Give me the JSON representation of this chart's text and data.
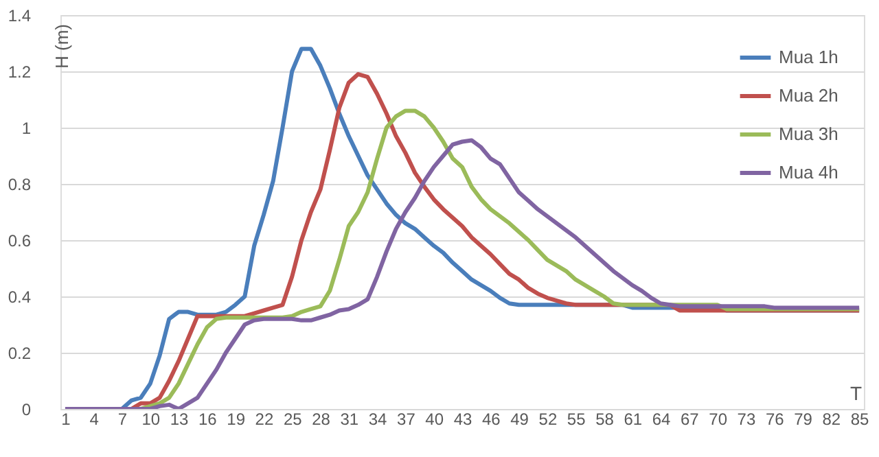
{
  "chart_data": {
    "type": "line",
    "xlabel": "T",
    "ylabel": "H (m)",
    "x": [
      1,
      2,
      3,
      4,
      5,
      6,
      7,
      8,
      9,
      10,
      11,
      12,
      13,
      14,
      15,
      16,
      17,
      18,
      19,
      20,
      21,
      22,
      23,
      24,
      25,
      26,
      27,
      28,
      29,
      30,
      31,
      32,
      33,
      34,
      35,
      36,
      37,
      38,
      39,
      40,
      41,
      42,
      43,
      44,
      45,
      46,
      47,
      48,
      49,
      50,
      51,
      52,
      53,
      54,
      55,
      56,
      57,
      58,
      59,
      60,
      61,
      62,
      63,
      64,
      65,
      66,
      67,
      68,
      69,
      70,
      71,
      72,
      73,
      74,
      75,
      76,
      77,
      78,
      79,
      80,
      81,
      82,
      83,
      84,
      85
    ],
    "xlim": [
      0.5,
      85.5
    ],
    "xticks": [
      1,
      4,
      7,
      10,
      13,
      16,
      19,
      22,
      25,
      28,
      31,
      34,
      37,
      40,
      43,
      46,
      49,
      52,
      55,
      58,
      61,
      64,
      67,
      70,
      73,
      76,
      79,
      82,
      85
    ],
    "ylim": [
      0,
      1.4
    ],
    "yticks": [
      0,
      0.2,
      0.4,
      0.6,
      0.8,
      1,
      1.2,
      1.4
    ],
    "grid": "y",
    "legend": "top right",
    "marker": "none",
    "line_style": "solid",
    "series": [
      {
        "name": "Mua 1h",
        "color": "#4a7ebb",
        "values": [
          null,
          null,
          null,
          null,
          null,
          null,
          0,
          0.03,
          0.04,
          0.09,
          0.19,
          0.32,
          0.345,
          0.345,
          0.335,
          0.335,
          0.335,
          0.345,
          0.37,
          0.4,
          0.58,
          0.69,
          0.81,
          1.0,
          1.2,
          1.28,
          1.28,
          1.22,
          1.14,
          1.05,
          0.97,
          0.9,
          0.83,
          0.78,
          0.73,
          0.69,
          0.66,
          0.64,
          0.61,
          0.58,
          0.555,
          0.52,
          0.49,
          0.46,
          0.44,
          0.42,
          0.395,
          0.375,
          0.37,
          0.37,
          0.37,
          0.37,
          0.37,
          0.37,
          0.37,
          0.37,
          0.37,
          0.37,
          0.37,
          0.37,
          0.36,
          0.36,
          0.36,
          0.36,
          0.36,
          0.36,
          0.36,
          0.36,
          0.36,
          0.36,
          0.35,
          0.35,
          0.35,
          0.35,
          0.35,
          0.35,
          0.35,
          0.35,
          0.35,
          0.35,
          0.35,
          0.35,
          0.35,
          0.35,
          0.35
        ]
      },
      {
        "name": "Mua 2h",
        "color": "#c0504d",
        "values": [
          null,
          null,
          null,
          null,
          null,
          null,
          null,
          0,
          0.02,
          0.02,
          0.04,
          0.1,
          0.17,
          0.25,
          0.33,
          0.33,
          0.33,
          0.33,
          0.33,
          0.33,
          0.34,
          0.35,
          0.36,
          0.37,
          0.47,
          0.6,
          0.7,
          0.78,
          0.92,
          1.07,
          1.16,
          1.19,
          1.18,
          1.12,
          1.05,
          0.97,
          0.91,
          0.84,
          0.79,
          0.745,
          0.71,
          0.68,
          0.65,
          0.61,
          0.58,
          0.55,
          0.515,
          0.48,
          0.46,
          0.43,
          0.41,
          0.395,
          0.385,
          0.375,
          0.37,
          0.37,
          0.37,
          0.37,
          0.37,
          0.37,
          0.37,
          0.37,
          0.37,
          0.37,
          0.37,
          0.35,
          0.35,
          0.35,
          0.35,
          0.35,
          0.35,
          0.35,
          0.35,
          0.35,
          0.35,
          0.35,
          0.35,
          0.35,
          0.35,
          0.35,
          0.35,
          0.35,
          0.35,
          0.35,
          0.35
        ]
      },
      {
        "name": "Mua 3h",
        "color": "#9bbb59",
        "values": [
          null,
          null,
          null,
          null,
          null,
          null,
          null,
          null,
          0,
          0.01,
          0.02,
          0.04,
          0.09,
          0.16,
          0.23,
          0.29,
          0.32,
          0.325,
          0.325,
          0.325,
          0.325,
          0.325,
          0.325,
          0.325,
          0.33,
          0.345,
          0.355,
          0.365,
          0.42,
          0.53,
          0.65,
          0.7,
          0.77,
          0.89,
          1.0,
          1.04,
          1.06,
          1.06,
          1.04,
          1.0,
          0.95,
          0.89,
          0.86,
          0.79,
          0.745,
          0.71,
          0.685,
          0.66,
          0.63,
          0.6,
          0.565,
          0.53,
          0.51,
          0.49,
          0.46,
          0.44,
          0.42,
          0.4,
          0.375,
          0.37,
          0.37,
          0.37,
          0.37,
          0.37,
          0.37,
          0.37,
          0.37,
          0.37,
          0.37,
          0.37,
          0.355,
          0.355,
          0.355,
          0.355,
          0.355,
          0.355,
          0.355,
          0.355,
          0.355,
          0.355,
          0.355,
          0.355,
          0.355,
          0.355,
          0.355
        ]
      },
      {
        "name": "Mua 4h",
        "color": "#8064a2",
        "values": [
          0,
          0,
          0,
          0,
          0,
          0,
          0,
          0,
          0,
          0,
          0.01,
          0.015,
          0,
          0.02,
          0.04,
          0.09,
          0.14,
          0.2,
          0.25,
          0.3,
          0.315,
          0.32,
          0.32,
          0.32,
          0.32,
          0.315,
          0.315,
          0.325,
          0.335,
          0.35,
          0.355,
          0.37,
          0.39,
          0.47,
          0.56,
          0.64,
          0.7,
          0.75,
          0.81,
          0.86,
          0.9,
          0.94,
          0.95,
          0.955,
          0.93,
          0.89,
          0.87,
          0.82,
          0.77,
          0.74,
          0.71,
          0.685,
          0.66,
          0.635,
          0.61,
          0.58,
          0.55,
          0.52,
          0.49,
          0.465,
          0.44,
          0.42,
          0.395,
          0.375,
          0.37,
          0.365,
          0.365,
          0.365,
          0.365,
          0.365,
          0.365,
          0.365,
          0.365,
          0.365,
          0.365,
          0.36,
          0.36,
          0.36,
          0.36,
          0.36,
          0.36,
          0.36,
          0.36,
          0.36,
          0.36
        ]
      }
    ]
  }
}
